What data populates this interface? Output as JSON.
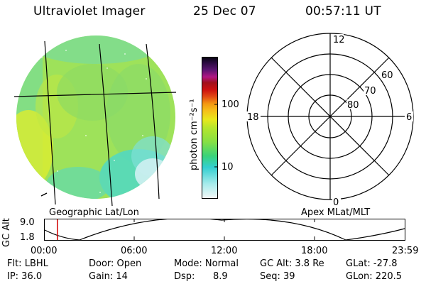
{
  "header": {
    "instrument": "Ultraviolet Imager",
    "date": "25 Dec 07",
    "time": "00:57:11 UT"
  },
  "colorbar": {
    "unit_label": "photon cm⁻²s⁻¹",
    "tick_100": "100",
    "tick_10": "10"
  },
  "left_panel": {
    "caption": "Geographic Lat/Lon"
  },
  "right_panel": {
    "caption": "Apex MLat/MLT",
    "mlt_12": "12",
    "mlt_18": "18",
    "mlt_6": "6",
    "mlt_0": "0",
    "lat_60": "60",
    "lat_70": "70",
    "lat_80": "80"
  },
  "altitude_plot": {
    "ylabel": "GC Alt",
    "y_top": "9.0",
    "y_bottom": "1.8",
    "x_ticks": [
      "00:00",
      "06:00",
      "12:00",
      "18:00",
      "23:59"
    ],
    "current_time_fraction": 0.035
  },
  "status": {
    "flt": "Flt: LBHL",
    "ip": "IP: 36.0",
    "door": "Door: Open",
    "gain": "Gain: 14",
    "mode": "Mode: Normal",
    "dsp": "Dsp:",
    "dsp_value": "8.9",
    "gcalt": "GC Alt: 3.8 Re",
    "seq": "Seq: 39",
    "glat": "GLat: -27.8",
    "glon": "GLon: 220.5"
  },
  "colors": {
    "earth_main": "#9ee25a",
    "earth_yellow": "#d8ec32",
    "earth_cyan": "#4fd8c4",
    "earth_pale": "#cfeff2",
    "marker": "#d00000"
  }
}
